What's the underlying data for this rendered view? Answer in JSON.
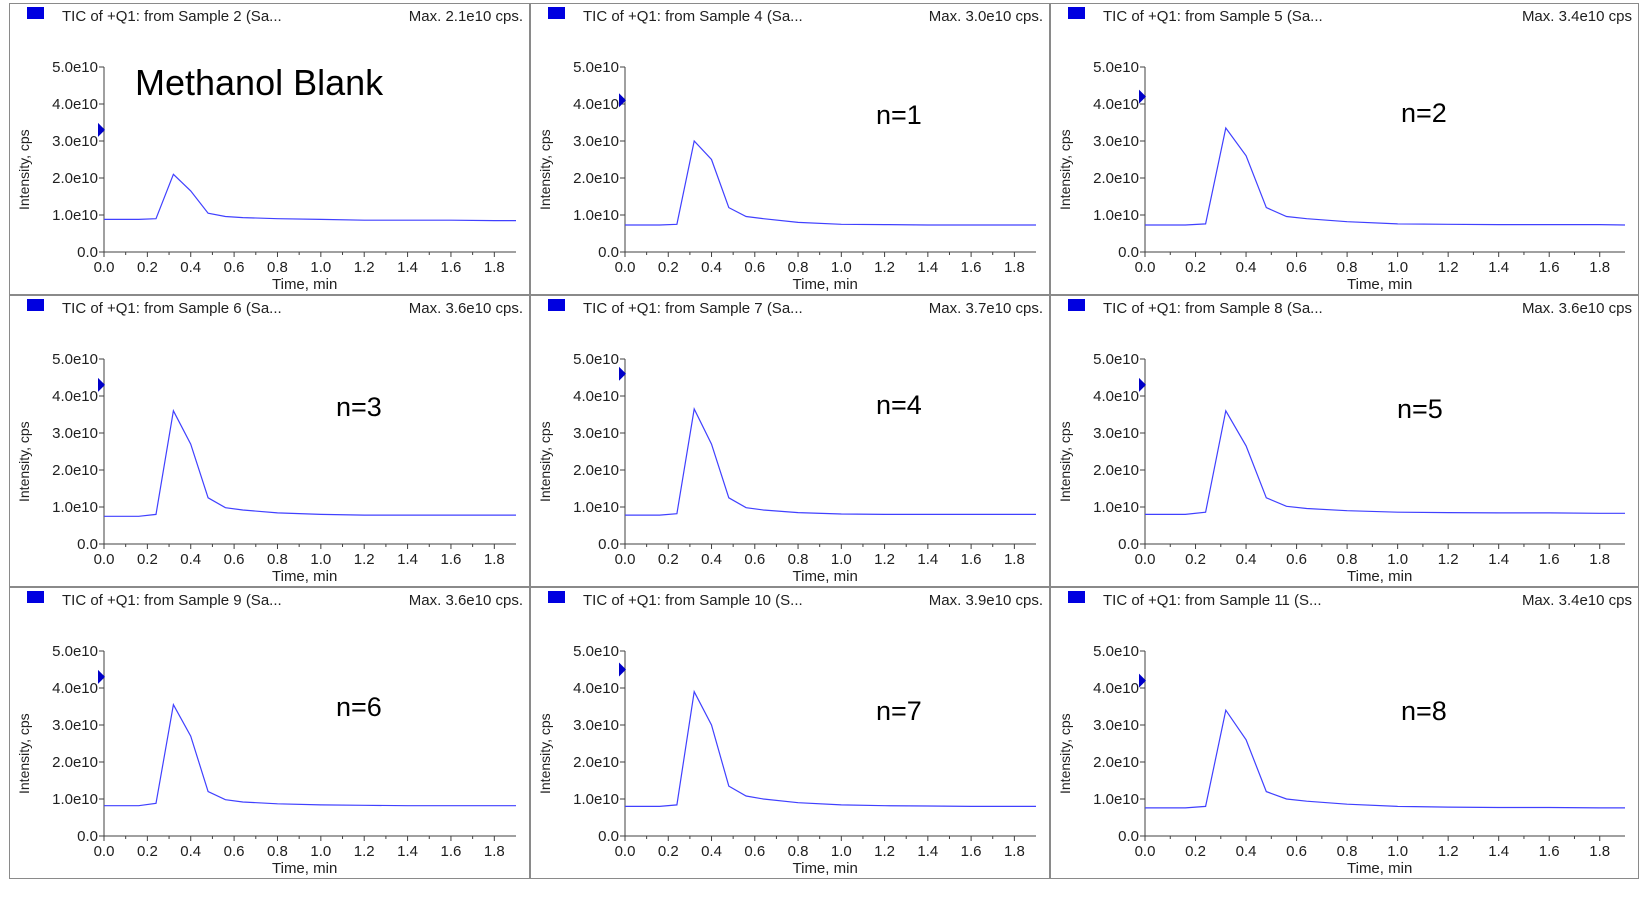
{
  "chart_data": [
    {
      "type": "line",
      "title": "TIC of +Q1: from Sample 2 (Sa...",
      "max_label": "Max. 2.1e10 cps.",
      "annotation": "Methanol Blank",
      "xlabel": "Time, min",
      "ylabel": "Intensity, cps",
      "xlim": [
        0,
        1.9
      ],
      "ylim": [
        0,
        50000000000.0
      ],
      "xticks": [
        "0.0",
        "0.2",
        "0.4",
        "0.6",
        "0.8",
        "1.0",
        "1.2",
        "1.4",
        "1.6",
        "1.8"
      ],
      "yticks": [
        "0.0",
        "1.0e10",
        "2.0e10",
        "3.0e10",
        "4.0e10",
        "5.0e10"
      ],
      "marker_y": 33000000000.0,
      "series": [
        {
          "color": "#4040ff",
          "x": [
            0.0,
            0.08,
            0.16,
            0.24,
            0.32,
            0.4,
            0.48,
            0.56,
            0.64,
            0.8,
            1.0,
            1.2,
            1.4,
            1.6,
            1.8,
            1.9
          ],
          "y": [
            8800000000.0,
            8800000000.0,
            8800000000.0,
            9000000000.0,
            21000000000.0,
            16500000000.0,
            10500000000.0,
            9600000000.0,
            9300000000.0,
            9000000000.0,
            8800000000.0,
            8600000000.0,
            8600000000.0,
            8600000000.0,
            8500000000.0,
            8500000000.0
          ]
        }
      ]
    },
    {
      "type": "line",
      "title": "TIC of +Q1: from Sample 4 (Sa...",
      "max_label": "Max. 3.0e10 cps.",
      "annotation": "n=1",
      "xlabel": "Time, min",
      "ylabel": "Intensity, cps",
      "xlim": [
        0,
        1.9
      ],
      "ylim": [
        0,
        50000000000.0
      ],
      "xticks": [
        "0.0",
        "0.2",
        "0.4",
        "0.6",
        "0.8",
        "1.0",
        "1.2",
        "1.4",
        "1.6",
        "1.8"
      ],
      "yticks": [
        "0.0",
        "1.0e10",
        "2.0e10",
        "3.0e10",
        "4.0e10",
        "5.0e10"
      ],
      "marker_y": 41000000000.0,
      "series": [
        {
          "color": "#4040ff",
          "x": [
            0.0,
            0.08,
            0.16,
            0.24,
            0.32,
            0.4,
            0.48,
            0.56,
            0.64,
            0.8,
            1.0,
            1.2,
            1.4,
            1.6,
            1.8,
            1.9
          ],
          "y": [
            7300000000.0,
            7300000000.0,
            7300000000.0,
            7500000000.0,
            30000000000.0,
            25000000000.0,
            12000000000.0,
            9600000000.0,
            9000000000.0,
            8000000000.0,
            7500000000.0,
            7400000000.0,
            7300000000.0,
            7300000000.0,
            7300000000.0,
            7300000000.0
          ]
        }
      ]
    },
    {
      "type": "line",
      "title": "TIC of +Q1: from Sample 5 (Sa...",
      "max_label": "Max. 3.4e10 cps",
      "annotation": "n=2",
      "xlabel": "Time, min",
      "ylabel": "Intensity, cps",
      "xlim": [
        0,
        1.9
      ],
      "ylim": [
        0,
        50000000000.0
      ],
      "xticks": [
        "0.0",
        "0.2",
        "0.4",
        "0.6",
        "0.8",
        "1.0",
        "1.2",
        "1.4",
        "1.6",
        "1.8"
      ],
      "yticks": [
        "0.0",
        "1.0e10",
        "2.0e10",
        "3.0e10",
        "4.0e10",
        "5.0e10"
      ],
      "marker_y": 42000000000.0,
      "series": [
        {
          "color": "#4040ff",
          "x": [
            0.0,
            0.08,
            0.16,
            0.24,
            0.32,
            0.4,
            0.48,
            0.56,
            0.64,
            0.8,
            1.0,
            1.2,
            1.4,
            1.6,
            1.8,
            1.9
          ],
          "y": [
            7300000000.0,
            7300000000.0,
            7300000000.0,
            7600000000.0,
            33500000000.0,
            26000000000.0,
            12000000000.0,
            9600000000.0,
            9000000000.0,
            8200000000.0,
            7600000000.0,
            7500000000.0,
            7400000000.0,
            7400000000.0,
            7400000000.0,
            7300000000.0
          ]
        }
      ]
    },
    {
      "type": "line",
      "title": "TIC of +Q1: from Sample 6 (Sa...",
      "max_label": "Max. 3.6e10 cps.",
      "annotation": "n=3",
      "xlabel": "Time, min",
      "ylabel": "Intensity, cps",
      "xlim": [
        0,
        1.9
      ],
      "ylim": [
        0,
        50000000000.0
      ],
      "xticks": [
        "0.0",
        "0.2",
        "0.4",
        "0.6",
        "0.8",
        "1.0",
        "1.2",
        "1.4",
        "1.6",
        "1.8"
      ],
      "yticks": [
        "0.0",
        "1.0e10",
        "2.0e10",
        "3.0e10",
        "4.0e10",
        "5.0e10"
      ],
      "marker_y": 43000000000.0,
      "series": [
        {
          "color": "#4040ff",
          "x": [
            0.0,
            0.08,
            0.16,
            0.24,
            0.32,
            0.4,
            0.48,
            0.56,
            0.64,
            0.8,
            1.0,
            1.2,
            1.4,
            1.6,
            1.8,
            1.9
          ],
          "y": [
            7500000000.0,
            7500000000.0,
            7500000000.0,
            8000000000.0,
            36000000000.0,
            27000000000.0,
            12500000000.0,
            9800000000.0,
            9200000000.0,
            8400000000.0,
            8000000000.0,
            7800000000.0,
            7800000000.0,
            7800000000.0,
            7800000000.0,
            7800000000.0
          ]
        }
      ]
    },
    {
      "type": "line",
      "title": "TIC of +Q1: from Sample 7 (Sa...",
      "max_label": "Max. 3.7e10 cps.",
      "annotation": "n=4",
      "xlabel": "Time, min",
      "ylabel": "Intensity, cps",
      "xlim": [
        0,
        1.9
      ],
      "ylim": [
        0,
        50000000000.0
      ],
      "xticks": [
        "0.0",
        "0.2",
        "0.4",
        "0.6",
        "0.8",
        "1.0",
        "1.2",
        "1.4",
        "1.6",
        "1.8"
      ],
      "yticks": [
        "0.0",
        "1.0e10",
        "2.0e10",
        "3.0e10",
        "4.0e10",
        "5.0e10"
      ],
      "marker_y": 46000000000.0,
      "series": [
        {
          "color": "#4040ff",
          "x": [
            0.0,
            0.08,
            0.16,
            0.24,
            0.32,
            0.4,
            0.48,
            0.56,
            0.64,
            0.8,
            1.0,
            1.2,
            1.4,
            1.6,
            1.8,
            1.9
          ],
          "y": [
            7800000000.0,
            7800000000.0,
            7800000000.0,
            8200000000.0,
            36500000000.0,
            27000000000.0,
            12500000000.0,
            9800000000.0,
            9200000000.0,
            8500000000.0,
            8100000000.0,
            8000000000.0,
            8000000000.0,
            8000000000.0,
            8000000000.0,
            8000000000.0
          ]
        }
      ]
    },
    {
      "type": "line",
      "title": "TIC of +Q1: from Sample 8 (Sa...",
      "max_label": "Max. 3.6e10 cps",
      "annotation": "n=5",
      "xlabel": "Time, min",
      "ylabel": "Intensity, cps",
      "xlim": [
        0,
        1.9
      ],
      "ylim": [
        0,
        50000000000.0
      ],
      "xticks": [
        "0.0",
        "0.2",
        "0.4",
        "0.6",
        "0.8",
        "1.0",
        "1.2",
        "1.4",
        "1.6",
        "1.8"
      ],
      "yticks": [
        "0.0",
        "1.0e10",
        "2.0e10",
        "3.0e10",
        "4.0e10",
        "5.0e10"
      ],
      "marker_y": 43000000000.0,
      "series": [
        {
          "color": "#4040ff",
          "x": [
            0.0,
            0.08,
            0.16,
            0.24,
            0.32,
            0.4,
            0.48,
            0.56,
            0.64,
            0.8,
            1.0,
            1.2,
            1.4,
            1.6,
            1.8,
            1.9
          ],
          "y": [
            8000000000.0,
            8000000000.0,
            8000000000.0,
            8600000000.0,
            36000000000.0,
            26500000000.0,
            12500000000.0,
            10200000000.0,
            9600000000.0,
            9000000000.0,
            8600000000.0,
            8500000000.0,
            8400000000.0,
            8400000000.0,
            8300000000.0,
            8300000000.0
          ]
        }
      ]
    },
    {
      "type": "line",
      "title": "TIC of +Q1: from Sample 9 (Sa...",
      "max_label": "Max. 3.6e10 cps.",
      "annotation": "n=6",
      "xlabel": "Time, min",
      "ylabel": "Intensity, cps",
      "xlim": [
        0,
        1.9
      ],
      "ylim": [
        0,
        50000000000.0
      ],
      "xticks": [
        "0.0",
        "0.2",
        "0.4",
        "0.6",
        "0.8",
        "1.0",
        "1.2",
        "1.4",
        "1.6",
        "1.8"
      ],
      "yticks": [
        "0.0",
        "1.0e10",
        "2.0e10",
        "3.0e10",
        "4.0e10",
        "5.0e10"
      ],
      "marker_y": 43000000000.0,
      "series": [
        {
          "color": "#4040ff",
          "x": [
            0.0,
            0.08,
            0.16,
            0.24,
            0.32,
            0.4,
            0.48,
            0.56,
            0.64,
            0.8,
            1.0,
            1.2,
            1.4,
            1.6,
            1.8,
            1.9
          ],
          "y": [
            8200000000.0,
            8200000000.0,
            8200000000.0,
            8800000000.0,
            35500000000.0,
            27000000000.0,
            12000000000.0,
            9800000000.0,
            9200000000.0,
            8700000000.0,
            8400000000.0,
            8300000000.0,
            8200000000.0,
            8200000000.0,
            8200000000.0,
            8200000000.0
          ]
        }
      ]
    },
    {
      "type": "line",
      "title": "TIC of +Q1: from Sample 10 (S...",
      "max_label": "Max. 3.9e10 cps.",
      "annotation": "n=7",
      "xlabel": "Time, min",
      "ylabel": "Intensity, cps",
      "xlim": [
        0,
        1.9
      ],
      "ylim": [
        0,
        50000000000.0
      ],
      "xticks": [
        "0.0",
        "0.2",
        "0.4",
        "0.6",
        "0.8",
        "1.0",
        "1.2",
        "1.4",
        "1.6",
        "1.8"
      ],
      "yticks": [
        "0.0",
        "1.0e10",
        "2.0e10",
        "3.0e10",
        "4.0e10",
        "5.0e10"
      ],
      "marker_y": 45000000000.0,
      "series": [
        {
          "color": "#4040ff",
          "x": [
            0.0,
            0.08,
            0.16,
            0.24,
            0.32,
            0.4,
            0.48,
            0.56,
            0.64,
            0.8,
            1.0,
            1.2,
            1.4,
            1.6,
            1.8,
            1.9
          ],
          "y": [
            8000000000.0,
            8000000000.0,
            8000000000.0,
            8400000000.0,
            39000000000.0,
            30000000000.0,
            13500000000.0,
            10800000000.0,
            10000000000.0,
            9000000000.0,
            8400000000.0,
            8200000000.0,
            8100000000.0,
            8000000000.0,
            8000000000.0,
            8000000000.0
          ]
        }
      ]
    },
    {
      "type": "line",
      "title": "TIC of +Q1: from Sample 11 (S...",
      "max_label": "Max. 3.4e10 cps",
      "annotation": "n=8",
      "xlabel": "Time, min",
      "ylabel": "Intensity, cps",
      "xlim": [
        0,
        1.9
      ],
      "ylim": [
        0,
        50000000000.0
      ],
      "xticks": [
        "0.0",
        "0.2",
        "0.4",
        "0.6",
        "0.8",
        "1.0",
        "1.2",
        "1.4",
        "1.6",
        "1.8"
      ],
      "yticks": [
        "0.0",
        "1.0e10",
        "2.0e10",
        "3.0e10",
        "4.0e10",
        "5.0e10"
      ],
      "marker_y": 42000000000.0,
      "series": [
        {
          "color": "#4040ff",
          "x": [
            0.0,
            0.08,
            0.16,
            0.24,
            0.32,
            0.4,
            0.48,
            0.56,
            0.64,
            0.8,
            1.0,
            1.2,
            1.4,
            1.6,
            1.8,
            1.9
          ],
          "y": [
            7600000000.0,
            7600000000.0,
            7600000000.0,
            8000000000.0,
            34000000000.0,
            26000000000.0,
            12000000000.0,
            10000000000.0,
            9400000000.0,
            8600000000.0,
            8000000000.0,
            7800000000.0,
            7700000000.0,
            7700000000.0,
            7600000000.0,
            7600000000.0
          ]
        }
      ]
    }
  ],
  "colors": {
    "trace": "#4040ff",
    "marker": "#0000c8",
    "header_square": "#0000e0"
  }
}
